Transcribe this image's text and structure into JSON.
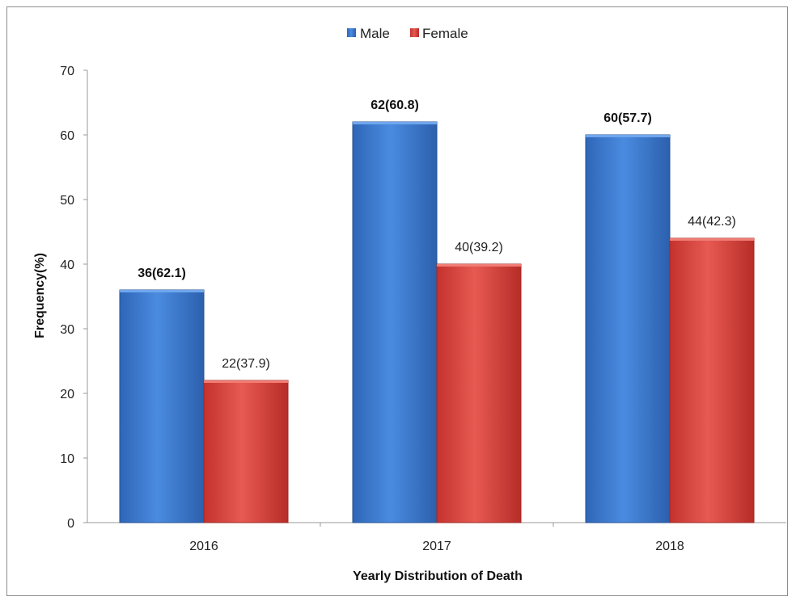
{
  "chart_data": {
    "type": "bar",
    "title": "",
    "xlabel": "Yearly Distribution  of Death",
    "ylabel": "Frequency(%)",
    "categories": [
      "2016",
      "2017",
      "2018"
    ],
    "ylim": [
      0,
      70
    ],
    "yticks": [
      0,
      10,
      20,
      30,
      40,
      50,
      60,
      70
    ],
    "grid": false,
    "legend_position": "top-center",
    "series": [
      {
        "name": "Male",
        "color": "#3a78cc",
        "values": [
          36,
          62,
          60
        ],
        "labels": [
          "36(62.1)",
          "62(60.8)",
          "60(57.7)"
        ],
        "label_bold": true
      },
      {
        "name": "Female",
        "color": "#d63f3a",
        "values": [
          22,
          40,
          44
        ],
        "labels": [
          "22(37.9)",
          "40(39.2)",
          "44(42.3)"
        ],
        "label_bold": false
      }
    ]
  }
}
